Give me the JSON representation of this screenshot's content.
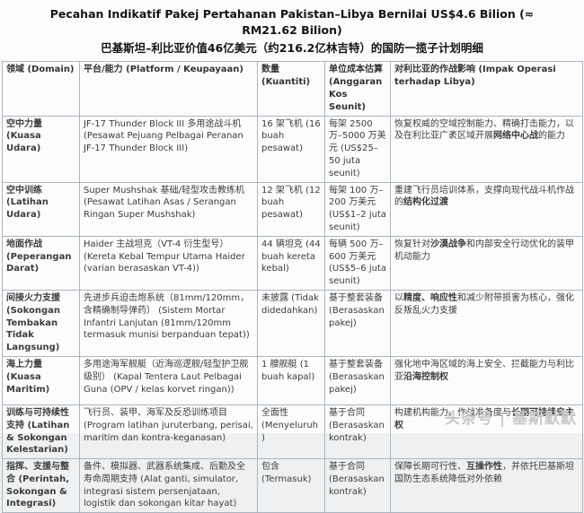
{
  "title": {
    "line1": "Pecahan Indikatif Pakej Pertahanan Pakistan–Libya Bernilai US$4.6 Bilion (≈ RM21.62 Bilion)",
    "line2": "巴基斯坦–利比亚价值46亿美元（约216.2亿林吉特）的国防一揽子计划明细"
  },
  "table": {
    "headers": [
      "领域 (Domain)",
      "平台/能力 (Platform / Keupayaan)",
      "数量 (Kuantiti)",
      "单位成本估算 (Anggaran Kos Seunit)",
      "对利比亚的作战影响 (Impak Operasi terhadap Libya)"
    ],
    "rows": [
      {
        "domain": "空中力量 (Kuasa Udara)",
        "platform": "JF-17 Thunder Block III 多用途战斗机 (Pesawat Pejuang Pelbagai Peranan JF-17 Thunder Block III)",
        "quantity": "16 架飞机 (16 buah pesawat)",
        "cost": "每架 2500 万–5000 万美元 (US$25–50 juta seunit)",
        "impact_pre": "恢复权威的空域控制能力、精确打击能力，以及在利比亚广袤区域开展",
        "impact_bold": "网络中心战",
        "impact_post": "的能力"
      },
      {
        "domain": "空中训练 (Latihan Udara)",
        "platform": "Super Mushshak 基础/轻型攻击教练机 (Pesawat Latihan Asas / Serangan Ringan Super Mushshak)",
        "quantity": "12 架飞机 (12 buah pesawat)",
        "cost": "每架 100 万–200 万美元 (US$1–2 juta seunit)",
        "impact_pre": "重建飞行员培训体系，支撑向现代战斗机作战的",
        "impact_bold": "结构化过渡",
        "impact_post": ""
      },
      {
        "domain": "地面作战 (Peperangan Darat)",
        "platform": "Haider 主战坦克（VT-4 衍生型号） (Kereta Kebal Tempur Utama Haider (varian berasaskan VT-4))",
        "quantity": "44 辆坦克 (44 buah kereta kebal)",
        "cost": "每辆 500 万–600 万美元 (US$5–6 juta seunit)",
        "impact_pre": "恢复针对",
        "impact_bold": "沙漠战争",
        "impact_post": "和内部安全行动优化的装甲机动能力"
      },
      {
        "domain": "间接火力支援 (Sokongan Tembakan Tidak Langsung)",
        "platform": "先进步兵迫击炮系统（81mm/120mm，含精确制导弹药） (Sistem Mortar Infantri Lanjutan (81mm/120mm termasuk munisi berpanduan tepat))",
        "quantity": "未披露 (Tidak didedahkan)",
        "cost": "基于整套装备 (Berasaskan pakej)",
        "impact_pre": "以",
        "impact_bold": "精度、响应性",
        "impact_post": "和减少附带损害为核心，强化反叛乱火力支援"
      },
      {
        "domain": "海上力量 (Kuasa Maritim)",
        "platform": "多用途海军舰艇（近海巡逻舰/轻型护卫舰级别） (Kapal Tentera Laut Pelbagai Guna (OPV / kelas korvet ringan))",
        "quantity": "1 艘舰艇 (1 buah kapal)",
        "cost": "基于整套装备 (Berasaskan pakej)",
        "impact_pre": "强化地中海区域的海上安全、拦截能力与利比亚",
        "impact_bold": "沿海控制权",
        "impact_post": ""
      },
      {
        "domain": "训练与可持续性支持 (Latihan & Sokongan Kelestarian)",
        "platform": "飞行员、装甲、海军及反恐训练项目 (Program latihan juruterbang, perisai, maritim dan kontra-keganasan)",
        "quantity": "全面性 (Menyeluruh)",
        "cost": "基于合同 (Berasaskan kontrak)",
        "impact_pre": "构建机构能力、作战准备度与",
        "impact_bold": "长期可持续自主权",
        "impact_post": ""
      },
      {
        "domain": "指挥、支援与整合 (Perintah, Sokongan & Integrasi)",
        "platform": "备件、模拟器、武器系统集成、后勤及全寿命周期支持 (Alat ganti, simulator, integrasi sistem persenjataan, logistik dan sokongan kitar hayat)",
        "quantity": "包含 (Termasuk)",
        "cost": "基于合同 (Berasaskan kontrak)",
        "impact_pre": "保障长期可行性、",
        "impact_bold": "互操作性",
        "impact_post": "，并依托巴基斯坦国防生态系统降低对外依赖"
      }
    ]
  },
  "watermark": "头条号 | 基斯默默",
  "colors": {
    "border": "#aab6bf",
    "text": "#3c3c3c",
    "title_text": "#141414",
    "background": "#fcfcfd",
    "watermark": "#c6c6c6"
  }
}
